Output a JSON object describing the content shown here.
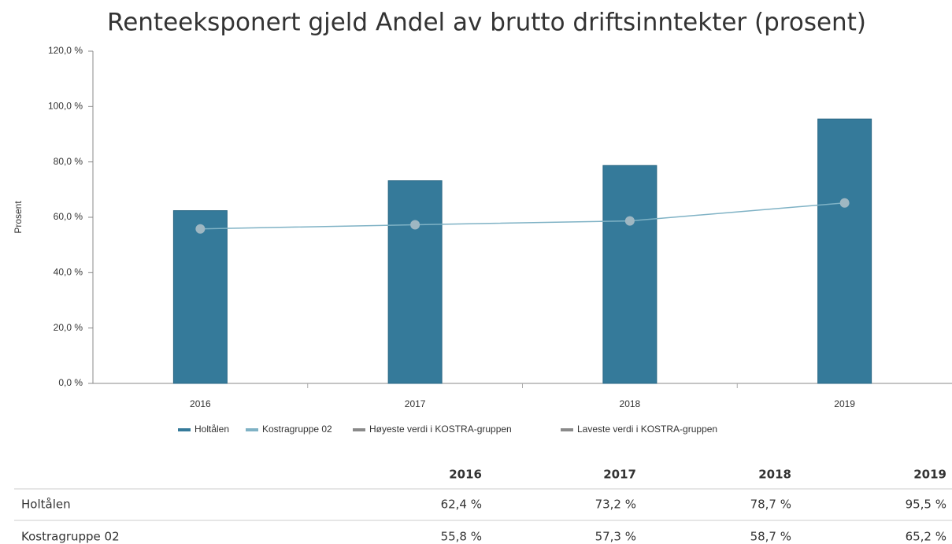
{
  "chart_data": {
    "type": "bar",
    "title": "Renteeksponert gjeld Andel av brutto driftsinntekter (prosent)",
    "ylabel": "Prosent",
    "categories": [
      "2016",
      "2017",
      "2018",
      "2019"
    ],
    "series": [
      {
        "name": "Holtålen",
        "type": "bar",
        "color": "#357a9a",
        "values": [
          62.4,
          73.2,
          78.7,
          95.5
        ],
        "value_labels": [
          "62,4 %",
          "73,2 %",
          "78,7 %",
          "95,5 %"
        ]
      },
      {
        "name": "Kostragruppe 02",
        "type": "line",
        "color": "#7fb2c5",
        "values": [
          55.8,
          57.3,
          58.7,
          65.2
        ],
        "value_labels": [
          "55,8 %",
          "57,3 %",
          "58,7 %",
          "65,2 %"
        ]
      },
      {
        "name": "Høyeste verdi i KOSTRA-gruppen",
        "type": "line",
        "color": "#8a8a8a",
        "values": [
          null,
          null,
          null,
          null
        ]
      },
      {
        "name": "Laveste verdi i KOSTRA-gruppen",
        "type": "line",
        "color": "#8a8a8a",
        "values": [
          null,
          null,
          null,
          null
        ]
      }
    ],
    "ylim": [
      0,
      120
    ],
    "yticks": [
      {
        "value": 0,
        "label": "0,0 %"
      },
      {
        "value": 20,
        "label": "20,0 %"
      },
      {
        "value": 40,
        "label": "40,0 %"
      },
      {
        "value": 60,
        "label": "60,0 %"
      },
      {
        "value": 80,
        "label": "80,0 %"
      },
      {
        "value": 100,
        "label": "100,0 %"
      },
      {
        "value": 120,
        "label": "120,0 %"
      }
    ],
    "grid": false,
    "legend": "bottom"
  }
}
